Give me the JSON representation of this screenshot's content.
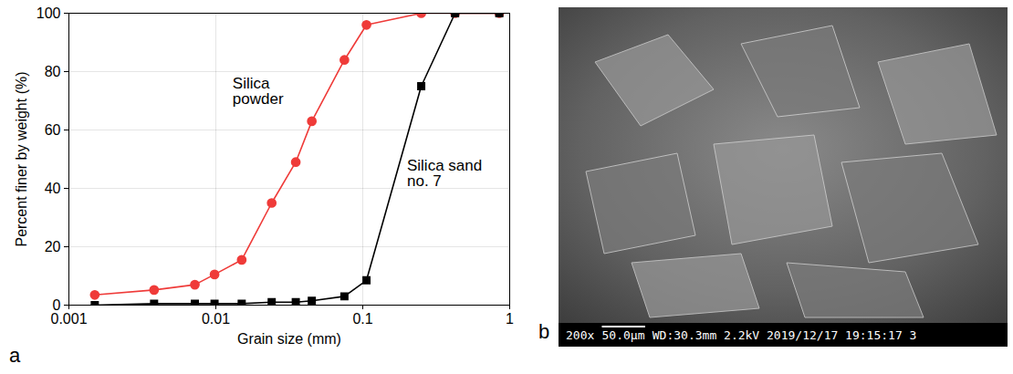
{
  "chart_data": {
    "type": "line",
    "panel": "a",
    "x_label": "Grain size (mm)",
    "y_label": "Percent finer by weight (%)",
    "x": [
      0.0015,
      0.0038,
      0.0072,
      0.0098,
      0.015,
      0.024,
      0.035,
      0.045,
      0.075,
      0.106,
      0.25,
      0.425,
      0.85
    ],
    "series": [
      {
        "name": "Silica powder",
        "color": "#ef3b39",
        "marker": "circle",
        "line_style": "solid",
        "values": [
          3.5,
          5.2,
          7,
          10.5,
          15.5,
          35,
          49,
          63,
          84,
          96,
          100,
          100,
          100
        ],
        "label_at": [
          0.013,
          78
        ]
      },
      {
        "name": "Silica sand no. 7",
        "color": "#000000",
        "marker": "square",
        "line_style": "solid",
        "values": [
          0,
          0.5,
          0.5,
          0.5,
          0.5,
          1,
          1,
          1.5,
          3,
          8.5,
          75,
          100,
          100
        ],
        "label_at": [
          0.2,
          50
        ]
      }
    ],
    "xlim": [
      0.001,
      1
    ],
    "ylim": [
      0,
      100
    ],
    "xticks": [
      0.001,
      0.01,
      0.1,
      1
    ],
    "yticks": [
      0,
      20,
      40,
      60,
      80,
      100
    ],
    "log": "x",
    "grid": true
  },
  "image": {
    "panel": "b",
    "magnification": "200x",
    "scale_bar": "50.0μm",
    "details": "WD:30.3mm 2.2kV 2019/12/17 19:15:17 3"
  }
}
